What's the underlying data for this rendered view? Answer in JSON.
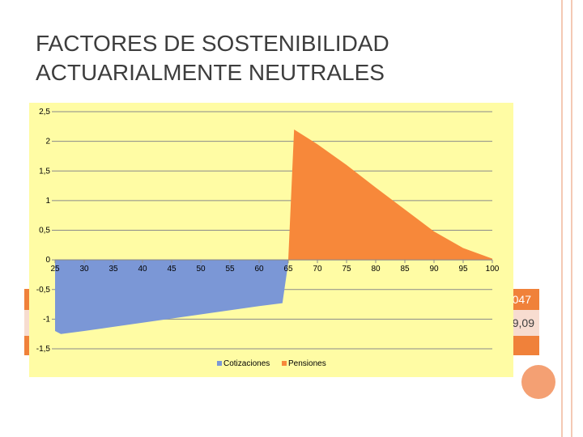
{
  "slide": {
    "title_line1": "FACTORES DE SOSTENIBILIDAD",
    "title_line2": "ACTUARIALMENTE NEUTRALES",
    "hidden_cell_1": "047",
    "hidden_cell_2": "9,09",
    "colors": {
      "accent": "#f0813a",
      "accent_light": "#f7dcd0",
      "chart_bg": "#fffca4",
      "cotizaciones": "#7b97d6",
      "pensiones": "#f7883a"
    }
  },
  "chart_data": {
    "type": "area",
    "title": "",
    "xlabel": "",
    "ylabel": "",
    "xlim": [
      25,
      100
    ],
    "ylim": [
      -1.5,
      2.5
    ],
    "x_ticks": [
      25,
      30,
      35,
      40,
      45,
      50,
      55,
      60,
      65,
      70,
      75,
      80,
      85,
      90,
      95,
      100
    ],
    "y_ticks": [
      "2,5",
      "2",
      "1,5",
      "1",
      "0,5",
      "0",
      "-0,5",
      "-1",
      "-1,5"
    ],
    "y_tick_values": [
      2.5,
      2,
      1.5,
      1,
      0.5,
      0,
      -0.5,
      -1,
      -1.5
    ],
    "grid": true,
    "legend_position": "bottom",
    "series": [
      {
        "name": "Cotizaciones",
        "color": "#7b97d6",
        "x": [
          25,
          26,
          30,
          35,
          40,
          45,
          50,
          55,
          60,
          64,
          65
        ],
        "y": [
          -1.2,
          -1.25,
          -1.2,
          -1.13,
          -1.06,
          -0.99,
          -0.92,
          -0.85,
          -0.78,
          -0.73,
          -0.05
        ]
      },
      {
        "name": "Pensiones",
        "color": "#f7883a",
        "x": [
          65,
          66,
          70,
          75,
          80,
          85,
          90,
          95,
          100
        ],
        "y": [
          0,
          2.2,
          1.95,
          1.6,
          1.22,
          0.85,
          0.48,
          0.2,
          0.02
        ]
      }
    ]
  }
}
